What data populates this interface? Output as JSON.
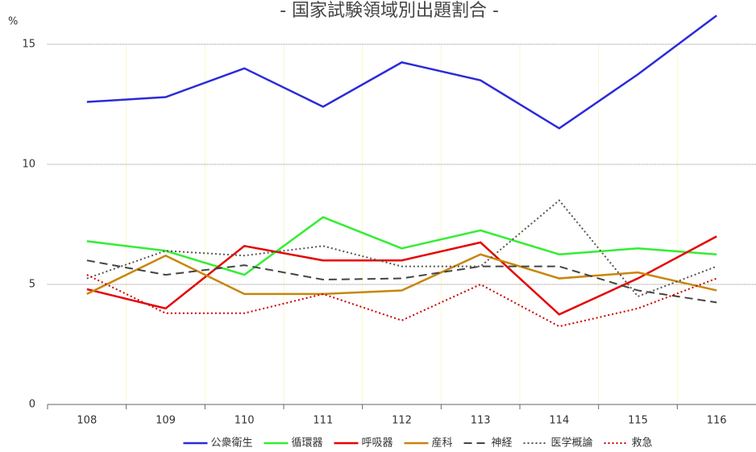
{
  "chart_data": {
    "type": "line",
    "title": "- 国家試験領域別出題割合 -",
    "y_label": "%",
    "categories": [
      "108",
      "109",
      "110",
      "111",
      "112",
      "113",
      "114",
      "115",
      "116"
    ],
    "ylim": [
      0,
      15
    ],
    "yticks": [
      0,
      5,
      10,
      15
    ],
    "grid": true,
    "legend": "bottom",
    "series": [
      {
        "name": "公衆衛生",
        "color": "#2b2bd9",
        "dash": "solid",
        "values": [
          12.6,
          12.8,
          14.0,
          12.4,
          14.25,
          13.5,
          11.5,
          13.75,
          16.2
        ]
      },
      {
        "name": "循環器",
        "color": "#33ee33",
        "dash": "solid",
        "values": [
          6.8,
          6.4,
          5.4,
          7.8,
          6.5,
          7.25,
          6.25,
          6.5,
          6.25
        ]
      },
      {
        "name": "呼吸器",
        "color": "#e60000",
        "dash": "solid",
        "values": [
          4.8,
          4.0,
          6.6,
          6.0,
          6.0,
          6.75,
          3.75,
          5.25,
          7.0
        ]
      },
      {
        "name": "産科",
        "color": "#c8860a",
        "dash": "solid",
        "values": [
          4.6,
          6.2,
          4.6,
          4.6,
          4.75,
          6.25,
          5.25,
          5.5,
          4.75
        ]
      },
      {
        "name": "神経",
        "color": "#444444",
        "dash": "dashed",
        "values": [
          6.0,
          5.4,
          5.8,
          5.2,
          5.25,
          5.75,
          5.75,
          4.75,
          4.25
        ]
      },
      {
        "name": "医学概論",
        "color": "#555555",
        "dash": "dotted",
        "values": [
          5.25,
          6.4,
          6.2,
          6.6,
          5.75,
          5.75,
          8.5,
          4.5,
          5.75
        ]
      },
      {
        "name": "救急",
        "color": "#cc0000",
        "dash": "dotted",
        "values": [
          5.4,
          3.8,
          3.8,
          4.6,
          3.5,
          5.0,
          3.25,
          4.0,
          5.25
        ]
      }
    ]
  }
}
